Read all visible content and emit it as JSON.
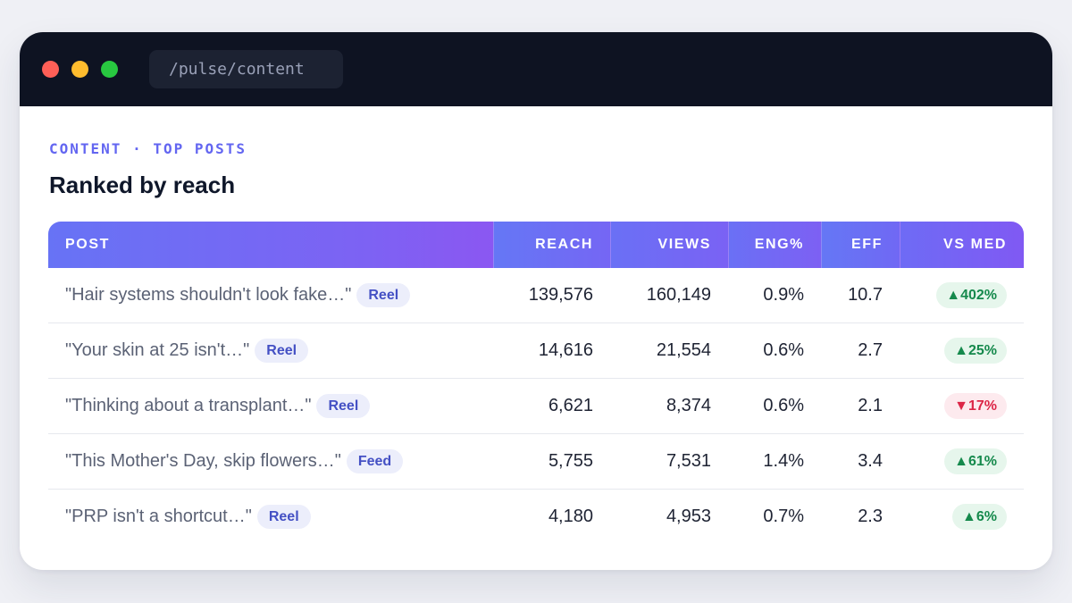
{
  "window": {
    "url": "/pulse/content"
  },
  "page": {
    "eyebrow": "CONTENT · TOP POSTS",
    "title": "Ranked by reach"
  },
  "table": {
    "columns": [
      "POST",
      "REACH",
      "VIEWS",
      "ENG%",
      "EFF",
      "VS MED"
    ],
    "rows": [
      {
        "post": "\"Hair systems shouldn't look fake…\"",
        "format": "Reel",
        "reach": "139,576",
        "views": "160,149",
        "eng": "0.9%",
        "eff": "10.7",
        "vs_med": "▲402%",
        "trend": "up"
      },
      {
        "post": "\"Your skin at 25 isn't…\"",
        "format": "Reel",
        "reach": "14,616",
        "views": "21,554",
        "eng": "0.6%",
        "eff": "2.7",
        "vs_med": "▲25%",
        "trend": "up"
      },
      {
        "post": "\"Thinking about a transplant…\"",
        "format": "Reel",
        "reach": "6,621",
        "views": "8,374",
        "eng": "0.6%",
        "eff": "2.1",
        "vs_med": "▼17%",
        "trend": "down"
      },
      {
        "post": "\"This Mother's Day, skip flowers…\"",
        "format": "Feed",
        "reach": "5,755",
        "views": "7,531",
        "eng": "1.4%",
        "eff": "3.4",
        "vs_med": "▲61%",
        "trend": "up"
      },
      {
        "post": "\"PRP isn't a shortcut…\"",
        "format": "Reel",
        "reach": "4,180",
        "views": "4,953",
        "eng": "0.7%",
        "eff": "2.3",
        "vs_med": "▲6%",
        "trend": "up"
      }
    ]
  },
  "colors": {
    "accent": "#6366f1",
    "header_gradient_start": "#6773f5",
    "header_gradient_end": "#8b57f2",
    "positive": "#15894c",
    "negative": "#dc2647",
    "titlebar": "#0e1322"
  }
}
